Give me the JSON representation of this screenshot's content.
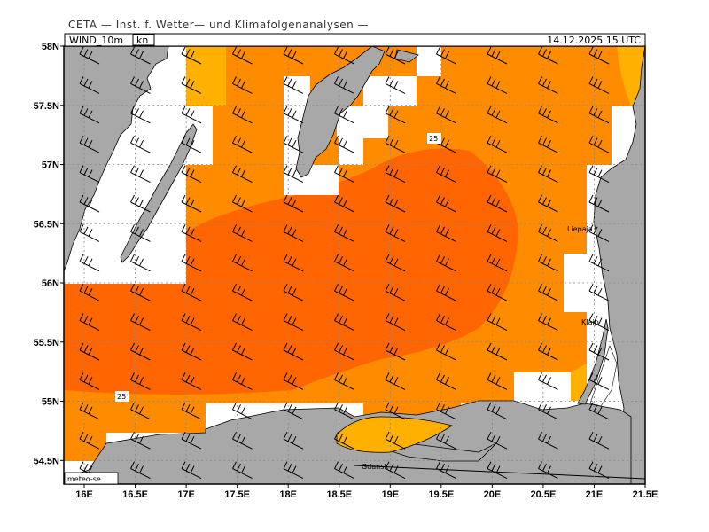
{
  "header": {
    "organization": "CETA — Inst. f. Wetter— und Klimafolgenanalysen —",
    "parameter": "WIND_10m",
    "unit": "kn",
    "datetime": "14.12.2025 15 UTC",
    "footer": "meteo-se"
  },
  "map": {
    "lon_range": [
      15.8,
      21.5
    ],
    "lat_range": [
      54.3,
      58.0
    ],
    "x_ticks": [
      "16E",
      "16.5E",
      "17E",
      "17.5E",
      "18E",
      "18.5E",
      "19E",
      "19.5E",
      "20E",
      "20.5E",
      "21E",
      "21.5E"
    ],
    "y_ticks": [
      "58N",
      "57.5N",
      "57N",
      "56.5N",
      "56N",
      "55.5N",
      "55N",
      "54.5N"
    ],
    "contour_labels": [
      "25",
      "25"
    ],
    "cities": [
      "Liepaja",
      "Klaip",
      "Gdansk"
    ],
    "colors": {
      "land": "#a8a8a8",
      "sea_low": "#ffffff",
      "wind_15_20": "#ffb000",
      "wind_20_25": "#ff8c00",
      "wind_25_plus": "#ff6500",
      "grid": "#888888",
      "barb": "#000000"
    }
  }
}
